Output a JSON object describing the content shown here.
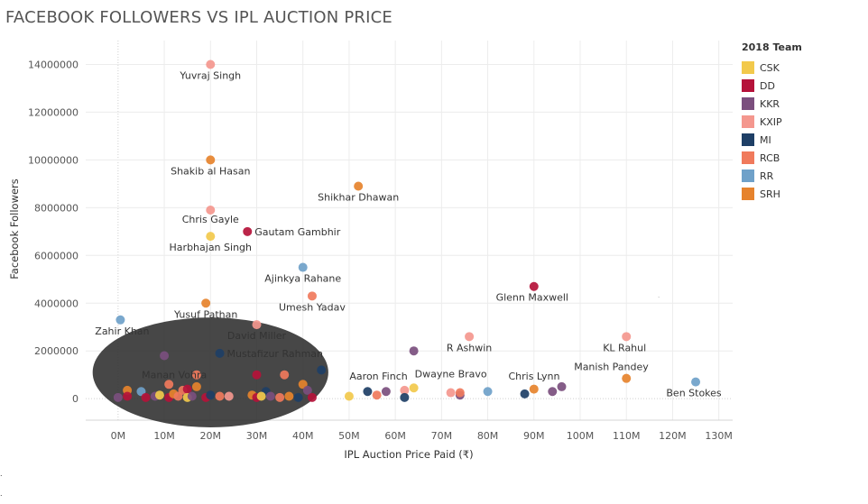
{
  "colors": {
    "CSK": "#f2c94c",
    "DD": "#b5123a",
    "KKR": "#7b4f7e",
    "KXIP": "#f4978e",
    "MI": "#1e3f66",
    "RCB": "#f07a5c",
    "RR": "#6fa1c9",
    "SRH": "#e6832d",
    "overlay": "#2e2e2e"
  },
  "chart_data": {
    "type": "scatter",
    "title": "FACEBOOK FOLLOWERS VS IPL AUCTION PRICE",
    "xlabel": "IPL Auction Price Paid (₹)",
    "ylabel": "Facebook Followers",
    "xlim": [
      -7,
      133
    ],
    "ylim": [
      -900000,
      15000000
    ],
    "x_unit": "millions of ₹",
    "x_ticks": [
      0,
      10,
      20,
      30,
      40,
      50,
      60,
      70,
      80,
      90,
      100,
      110,
      120,
      130
    ],
    "x_tick_labels": [
      "0M",
      "10M",
      "20M",
      "30M",
      "40M",
      "50M",
      "60M",
      "70M",
      "80M",
      "90M",
      "100M",
      "110M",
      "120M",
      "130M"
    ],
    "y_ticks": [
      0,
      2000000,
      4000000,
      6000000,
      8000000,
      10000000,
      12000000,
      14000000
    ],
    "y_tick_labels": [
      "0",
      "2000000",
      "4000000",
      "6000000",
      "8000000",
      "10000000",
      "12000000",
      "14000000"
    ],
    "legend_title": "2018 Team",
    "teams": [
      "CSK",
      "DD",
      "KKR",
      "KXIP",
      "MI",
      "RCB",
      "RR",
      "SRH"
    ],
    "points": [
      {
        "x": 20,
        "y": 14000000,
        "team": "KXIP",
        "label": "Yuvraj Singh"
      },
      {
        "x": 20,
        "y": 10000000,
        "team": "SRH",
        "label": "Shakib al Hasan"
      },
      {
        "x": 52,
        "y": 8900000,
        "team": "SRH",
        "label": "Shikhar Dhawan"
      },
      {
        "x": 20,
        "y": 7900000,
        "team": "KXIP",
        "label": "Chris Gayle"
      },
      {
        "x": 28,
        "y": 7000000,
        "team": "DD",
        "label": "Gautam Gambhir"
      },
      {
        "x": 20,
        "y": 6800000,
        "team": "CSK",
        "label": "Harbhajan Singh"
      },
      {
        "x": 40,
        "y": 5500000,
        "team": "RR",
        "label": "Ajinkya Rahane"
      },
      {
        "x": 90,
        "y": 4700000,
        "team": "DD",
        "label": "Glenn Maxwell"
      },
      {
        "x": 42,
        "y": 4300000,
        "team": "RCB",
        "label": "Umesh Yadav"
      },
      {
        "x": 19,
        "y": 4000000,
        "team": "SRH",
        "label": "Yusuf Pathan"
      },
      {
        "x": 0.5,
        "y": 3300000,
        "team": "RR",
        "label": "Zahir Khan"
      },
      {
        "x": 30,
        "y": 3100000,
        "team": "KXIP",
        "label": "David Miller"
      },
      {
        "x": 76,
        "y": 2600000,
        "team": "KXIP",
        "label": "R Ashwin"
      },
      {
        "x": 110,
        "y": 2600000,
        "team": "KXIP",
        "label": "KL Rahul"
      },
      {
        "x": 64,
        "y": 2000000,
        "team": "KKR",
        "label": ""
      },
      {
        "x": 22,
        "y": 1900000,
        "team": "MI",
        "label": "Mustafizur Rahman"
      },
      {
        "x": 44,
        "y": 1200000,
        "team": "MI",
        "label": ""
      },
      {
        "x": 110,
        "y": 850000,
        "team": "SRH",
        "label": "Manish Pandey"
      },
      {
        "x": 125,
        "y": 700000,
        "team": "RR",
        "label": "Ben Stokes"
      },
      {
        "x": 96,
        "y": 500000,
        "team": "KKR",
        "label": "Chris Lynn"
      },
      {
        "x": 94,
        "y": 300000,
        "team": "KKR",
        "label": ""
      },
      {
        "x": 90,
        "y": 400000,
        "team": "SRH",
        "label": ""
      },
      {
        "x": 88,
        "y": 200000,
        "team": "MI",
        "label": ""
      },
      {
        "x": 80,
        "y": 300000,
        "team": "RR",
        "label": ""
      },
      {
        "x": 74,
        "y": 150000,
        "team": "KKR",
        "label": ""
      },
      {
        "x": 74,
        "y": 250000,
        "team": "RCB",
        "label": ""
      },
      {
        "x": 72,
        "y": 250000,
        "team": "KXIP",
        "label": ""
      },
      {
        "x": 64,
        "y": 450000,
        "team": "CSK",
        "label": "Dwayne Bravo"
      },
      {
        "x": 62,
        "y": 350000,
        "team": "KXIP",
        "label": ""
      },
      {
        "x": 62,
        "y": 50000,
        "team": "MI",
        "label": ""
      },
      {
        "x": 58,
        "y": 300000,
        "team": "KKR",
        "label": ""
      },
      {
        "x": 56,
        "y": 150000,
        "team": "RCB",
        "label": ""
      },
      {
        "x": 54,
        "y": 300000,
        "team": "MI",
        "label": "Aaron Finch"
      },
      {
        "x": 50,
        "y": 100000,
        "team": "CSK",
        "label": ""
      },
      {
        "x": 10,
        "y": 1800000,
        "team": "KKR",
        "label": ""
      },
      {
        "x": 17,
        "y": 1000000,
        "team": "RCB",
        "label": ""
      },
      {
        "x": 30,
        "y": 1000000,
        "team": "DD",
        "label": ""
      },
      {
        "x": 36,
        "y": 1000000,
        "team": "RCB",
        "label": ""
      },
      {
        "x": 11,
        "y": 600000,
        "team": "RCB",
        "label": "Manan Vohra"
      },
      {
        "x": 40,
        "y": 600000,
        "team": "SRH",
        "label": ""
      },
      {
        "x": 2,
        "y": 350000,
        "team": "SRH",
        "label": ""
      },
      {
        "x": 5,
        "y": 300000,
        "team": "RR",
        "label": ""
      },
      {
        "x": 14,
        "y": 350000,
        "team": "RCB",
        "label": ""
      },
      {
        "x": 15,
        "y": 400000,
        "team": "DD",
        "label": ""
      },
      {
        "x": 17,
        "y": 500000,
        "team": "SRH",
        "label": ""
      },
      {
        "x": 32,
        "y": 300000,
        "team": "MI",
        "label": ""
      },
      {
        "x": 41,
        "y": 350000,
        "team": "KKR",
        "label": ""
      },
      {
        "x": 0,
        "y": 50000,
        "team": "KKR",
        "label": ""
      },
      {
        "x": 2,
        "y": 100000,
        "team": "DD",
        "label": ""
      },
      {
        "x": 6,
        "y": 50000,
        "team": "DD",
        "label": ""
      },
      {
        "x": 8,
        "y": 100000,
        "team": "KKR",
        "label": ""
      },
      {
        "x": 9,
        "y": 150000,
        "team": "CSK",
        "label": ""
      },
      {
        "x": 11,
        "y": 50000,
        "team": "DD",
        "label": ""
      },
      {
        "x": 12,
        "y": 200000,
        "team": "SRH",
        "label": ""
      },
      {
        "x": 13,
        "y": 100000,
        "team": "RCB",
        "label": ""
      },
      {
        "x": 15,
        "y": 50000,
        "team": "CSK",
        "label": ""
      },
      {
        "x": 16,
        "y": 100000,
        "team": "KKR",
        "label": ""
      },
      {
        "x": 19,
        "y": 50000,
        "team": "DD",
        "label": ""
      },
      {
        "x": 20,
        "y": 150000,
        "team": "MI",
        "label": ""
      },
      {
        "x": 22,
        "y": 100000,
        "team": "RCB",
        "label": ""
      },
      {
        "x": 24,
        "y": 100000,
        "team": "KXIP",
        "label": ""
      },
      {
        "x": 29,
        "y": 150000,
        "team": "SRH",
        "label": ""
      },
      {
        "x": 30,
        "y": 50000,
        "team": "DD",
        "label": ""
      },
      {
        "x": 31,
        "y": 100000,
        "team": "CSK",
        "label": ""
      },
      {
        "x": 33,
        "y": 100000,
        "team": "KKR",
        "label": ""
      },
      {
        "x": 35,
        "y": 50000,
        "team": "RCB",
        "label": ""
      },
      {
        "x": 37,
        "y": 100000,
        "team": "SRH",
        "label": ""
      },
      {
        "x": 39,
        "y": 50000,
        "team": "MI",
        "label": ""
      },
      {
        "x": 42,
        "y": 50000,
        "team": "DD",
        "label": ""
      }
    ]
  },
  "corner_marks": [
    ".",
    "."
  ]
}
